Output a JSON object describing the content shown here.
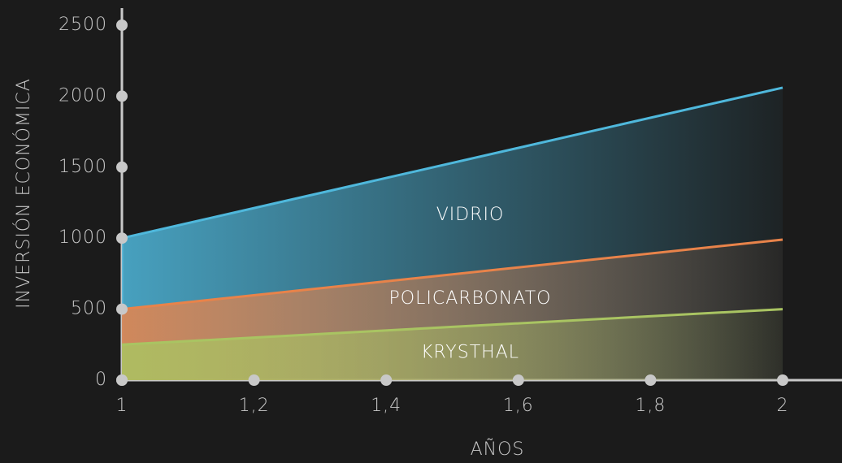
{
  "chart_data": {
    "type": "area",
    "x_label": "AÑOS",
    "y_label": "INVERSIÓN ECONÓMICA",
    "x": [
      1,
      2
    ],
    "series": [
      {
        "name": "VIDRIO",
        "color": "#4fb8dc",
        "values": [
          1000,
          2060
        ]
      },
      {
        "name": "POLICARBONATO",
        "color": "#e8834a",
        "values": [
          500,
          990
        ]
      },
      {
        "name": "KRYSTHAL",
        "color": "#a9c462",
        "values": [
          250,
          500
        ]
      }
    ],
    "xlim": [
      1,
      2
    ],
    "xticks": [
      1,
      {
        "value": 1.2,
        "label": "1,2"
      },
      {
        "value": 1.4,
        "label": "1,4"
      },
      {
        "value": 1.6,
        "label": "1,6"
      },
      {
        "value": 1.8,
        "label": "1,8"
      },
      2
    ],
    "ylim": [
      0,
      2500
    ],
    "yticks": [
      0,
      500,
      1000,
      1500,
      2000,
      2500
    ]
  }
}
